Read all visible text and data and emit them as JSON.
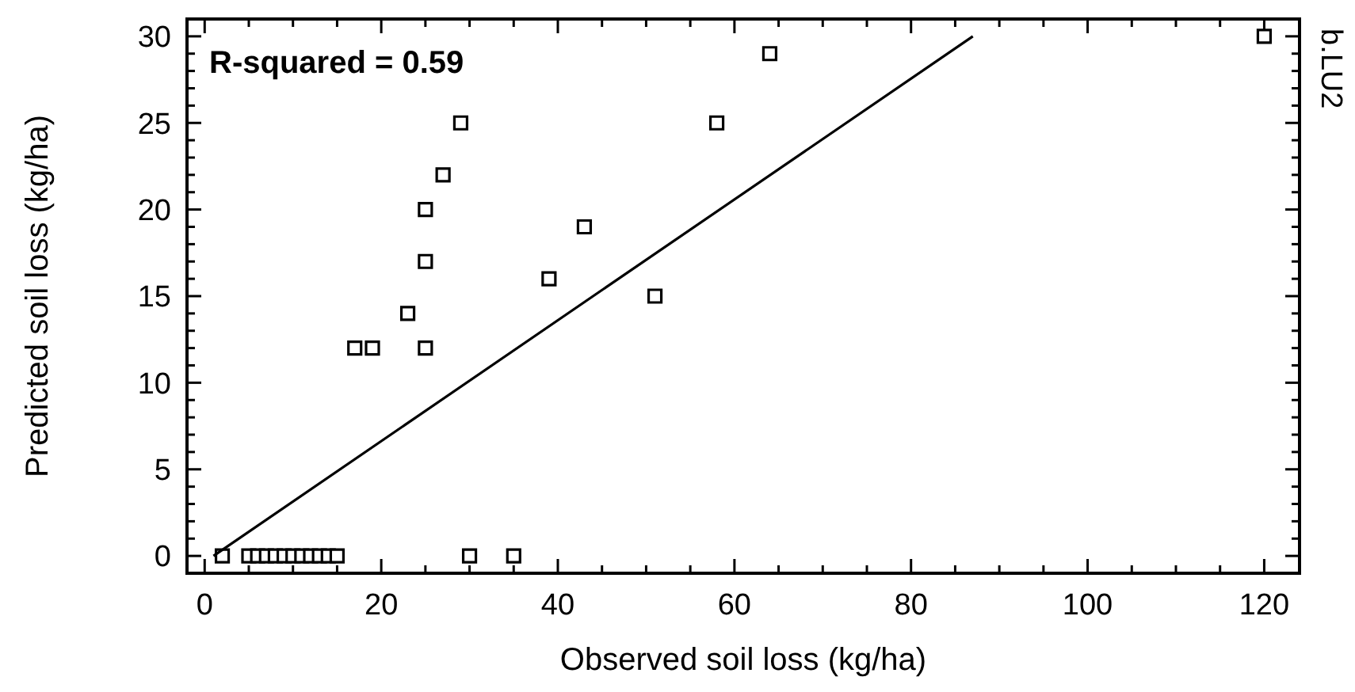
{
  "chart_data": {
    "type": "scatter",
    "xlabel": "Observed soil loss (kg/ha)",
    "ylabel": "Predicted soil loss (kg/ha)",
    "annotations": [
      "R-squared = 0.59",
      "b.LU2"
    ],
    "marker": "square",
    "grid": false,
    "xlim": [
      -2,
      124
    ],
    "ylim": [
      -1,
      31
    ],
    "xticks": [
      0,
      {
        "value": 5,
        "label": null
      },
      {
        "value": 10,
        "label": null
      },
      {
        "value": 15,
        "label": null
      },
      20,
      {
        "value": 25,
        "label": null
      },
      {
        "value": 30,
        "label": null
      },
      {
        "value": 35,
        "label": null
      },
      40,
      {
        "value": 45,
        "label": null
      },
      {
        "value": 50,
        "label": null
      },
      {
        "value": 55,
        "label": null
      },
      60,
      {
        "value": 65,
        "label": null
      },
      {
        "value": 70,
        "label": null
      },
      {
        "value": 75,
        "label": null
      },
      80,
      {
        "value": 85,
        "label": null
      },
      {
        "value": 90,
        "label": null
      },
      {
        "value": 95,
        "label": null
      },
      100,
      {
        "value": 105,
        "label": null
      },
      {
        "value": 110,
        "label": null
      },
      {
        "value": 115,
        "label": null
      },
      120
    ],
    "yticks": [
      0,
      {
        "value": 1,
        "label": null
      },
      {
        "value": 2,
        "label": null
      },
      {
        "value": 3,
        "label": null
      },
      {
        "value": 4,
        "label": null
      },
      5,
      {
        "value": 6,
        "label": null
      },
      {
        "value": 7,
        "label": null
      },
      {
        "value": 8,
        "label": null
      },
      {
        "value": 9,
        "label": null
      },
      10,
      {
        "value": 11,
        "label": null
      },
      {
        "value": 12,
        "label": null
      },
      {
        "value": 13,
        "label": null
      },
      {
        "value": 14,
        "label": null
      },
      15,
      {
        "value": 16,
        "label": null
      },
      {
        "value": 17,
        "label": null
      },
      {
        "value": 18,
        "label": null
      },
      {
        "value": 19,
        "label": null
      },
      20,
      {
        "value": 21,
        "label": null
      },
      {
        "value": 22,
        "label": null
      },
      {
        "value": 23,
        "label": null
      },
      {
        "value": 24,
        "label": null
      },
      25,
      {
        "value": 26,
        "label": null
      },
      {
        "value": 27,
        "label": null
      },
      {
        "value": 28,
        "label": null
      },
      {
        "value": 29,
        "label": null
      },
      30
    ],
    "series": [
      {
        "color": "#000000",
        "x": [
          2,
          5,
          6,
          7,
          8,
          9,
          10,
          11,
          12,
          13,
          14,
          15,
          30,
          35,
          17,
          19,
          25,
          23,
          25,
          25,
          27,
          29,
          39,
          43,
          51,
          58,
          64,
          120
        ],
        "values": [
          0,
          0,
          0,
          0,
          0,
          0,
          0,
          0,
          0,
          0,
          0,
          0,
          0,
          0,
          12,
          12,
          12,
          14,
          17,
          20,
          22,
          25,
          16,
          19,
          15,
          25,
          29,
          30
        ]
      },
      {
        "type": "line",
        "color": "#000000",
        "marker": "none",
        "x": [
          1,
          87
        ],
        "values": [
          0,
          30
        ]
      }
    ]
  }
}
